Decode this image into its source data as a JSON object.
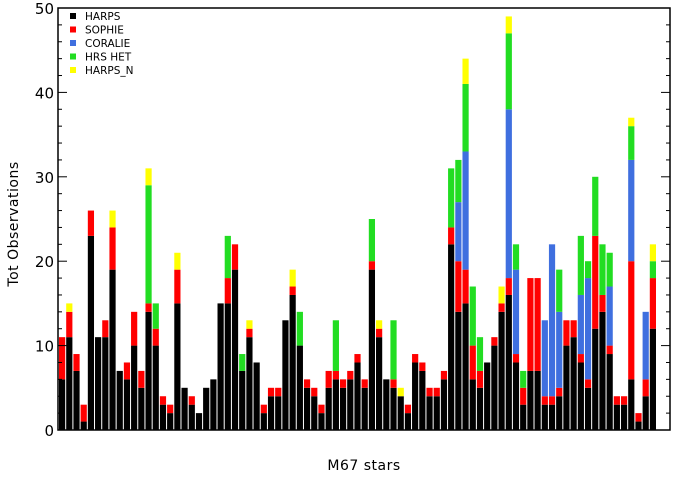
{
  "chart_data": {
    "type": "bar",
    "stacked": true,
    "xlabel": "M67 stars",
    "ylabel": "Tot Observations",
    "ylim": [
      0,
      50
    ],
    "yticks": [
      0,
      10,
      20,
      30,
      40,
      50
    ],
    "grid": false,
    "legend_position": "top-left",
    "series": [
      {
        "name": "HARPS",
        "color": "#000000",
        "values": [
          6,
          11,
          7,
          1,
          23,
          11,
          11,
          19,
          7,
          6,
          10,
          5,
          14,
          10,
          3,
          2,
          15,
          5,
          3,
          2,
          5,
          6,
          15,
          15,
          19,
          7,
          11,
          8,
          2,
          4,
          4,
          13,
          16,
          10,
          5,
          4,
          2,
          5,
          6,
          5,
          6,
          8,
          5,
          19,
          11,
          6,
          5,
          4,
          2,
          8,
          7,
          4,
          4,
          6,
          22,
          14,
          15,
          6,
          5,
          8,
          10,
          14,
          16,
          8,
          3,
          7,
          7,
          3,
          3,
          4,
          10,
          11,
          8,
          5,
          12,
          14,
          9,
          3,
          3,
          6,
          1,
          4,
          12
        ]
      },
      {
        "name": "SOPHIE",
        "color": "#ff0000",
        "values": [
          5,
          3,
          2,
          2,
          3,
          0,
          2,
          5,
          0,
          2,
          4,
          2,
          1,
          2,
          1,
          1,
          4,
          0,
          1,
          0,
          0,
          0,
          0,
          3,
          3,
          0,
          1,
          0,
          1,
          1,
          1,
          0,
          1,
          0,
          1,
          1,
          1,
          2,
          1,
          1,
          1,
          1,
          1,
          1,
          1,
          0,
          1,
          0,
          1,
          1,
          1,
          1,
          1,
          1,
          2,
          6,
          4,
          4,
          2,
          0,
          1,
          1,
          2,
          1,
          2,
          11,
          11,
          1,
          1,
          1,
          3,
          2,
          1,
          1,
          11,
          2,
          1,
          1,
          1,
          14,
          1,
          2,
          6
        ]
      },
      {
        "name": "CORALIE",
        "color": "#3f6fdf",
        "values": [
          0,
          0,
          0,
          0,
          0,
          0,
          0,
          0,
          0,
          0,
          0,
          0,
          0,
          0,
          0,
          0,
          0,
          0,
          0,
          0,
          0,
          0,
          0,
          0,
          0,
          0,
          0,
          0,
          0,
          0,
          0,
          0,
          0,
          0,
          0,
          0,
          0,
          0,
          0,
          0,
          0,
          0,
          0,
          0,
          0,
          0,
          0,
          0,
          0,
          0,
          0,
          0,
          0,
          0,
          0,
          7,
          14,
          0,
          0,
          0,
          0,
          0,
          20,
          10,
          0,
          0,
          0,
          9,
          18,
          9,
          0,
          0,
          7,
          12,
          0,
          0,
          7,
          0,
          0,
          12,
          0,
          8,
          0
        ]
      },
      {
        "name": "HRS HET",
        "color": "#22dd22",
        "values": [
          0,
          0,
          0,
          0,
          0,
          0,
          0,
          0,
          0,
          0,
          0,
          0,
          14,
          3,
          0,
          0,
          0,
          0,
          0,
          0,
          0,
          0,
          0,
          5,
          0,
          2,
          0,
          0,
          0,
          0,
          0,
          0,
          0,
          4,
          0,
          0,
          0,
          0,
          6,
          0,
          0,
          0,
          0,
          5,
          0,
          0,
          7,
          0,
          0,
          0,
          0,
          0,
          0,
          0,
          7,
          5,
          8,
          7,
          4,
          0,
          0,
          0,
          9,
          3,
          2,
          0,
          0,
          0,
          0,
          5,
          0,
          0,
          7,
          2,
          7,
          6,
          4,
          0,
          0,
          4,
          0,
          0,
          2
        ]
      },
      {
        "name": "HARPS_N",
        "color": "#ffff00",
        "values": [
          0,
          1,
          0,
          0,
          0,
          0,
          0,
          2,
          0,
          0,
          0,
          0,
          2,
          0,
          0,
          0,
          2,
          0,
          0,
          0,
          0,
          0,
          0,
          0,
          0,
          0,
          1,
          0,
          0,
          0,
          0,
          0,
          2,
          0,
          0,
          0,
          0,
          0,
          0,
          0,
          0,
          0,
          0,
          0,
          1,
          0,
          0,
          1,
          0,
          0,
          0,
          0,
          0,
          0,
          0,
          0,
          3,
          0,
          0,
          0,
          0,
          2,
          2,
          0,
          0,
          0,
          0,
          0,
          0,
          0,
          0,
          0,
          0,
          0,
          0,
          0,
          0,
          0,
          0,
          1,
          0,
          0,
          2
        ]
      }
    ]
  }
}
